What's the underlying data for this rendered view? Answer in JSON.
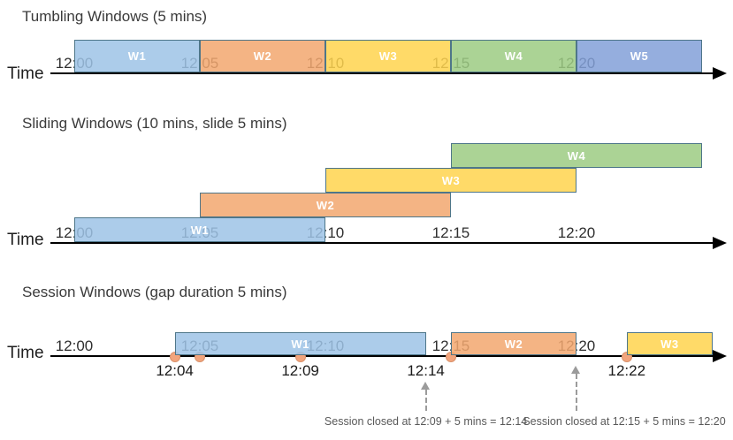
{
  "page": {
    "background": "#ffffff"
  },
  "colors": {
    "window_blue": "#9DC3E6",
    "window_orange": "#F2A76F",
    "window_yellow": "#FFD34D",
    "window_green": "#9CCB83",
    "window_blue_dark": "#82A0D8",
    "window_border": "#4E7689",
    "window_label_text": "#FFFFFF",
    "axis_color": "#000000",
    "tick_text": "#2F2F2F",
    "event_dot_fill": "#F2A47C",
    "event_dot_border": "#D9916A",
    "callout_gray": "#9B9B9B",
    "callout_text_color": "#595959",
    "title_text": "#3A3A3A"
  },
  "sections": [
    {
      "id": "tumbling",
      "title": "Tumbling Windows (5 mins)",
      "time_axis_label": "Time",
      "ticks": [
        {
          "label": "12:00",
          "minute": 0
        },
        {
          "label": "12:05",
          "minute": 5
        },
        {
          "label": "12:10",
          "minute": 10
        },
        {
          "label": "12:15",
          "minute": 15
        },
        {
          "label": "12:20",
          "minute": 20
        }
      ],
      "windows": [
        {
          "name": "W1",
          "start_minute": 0,
          "end_minute": 5,
          "color": "window_blue",
          "row": 0
        },
        {
          "name": "W2",
          "start_minute": 5,
          "end_minute": 10,
          "color": "window_orange",
          "row": 0
        },
        {
          "name": "W3",
          "start_minute": 10,
          "end_minute": 15,
          "color": "window_yellow",
          "row": 0
        },
        {
          "name": "W4",
          "start_minute": 15,
          "end_minute": 20,
          "color": "window_green",
          "row": 0
        },
        {
          "name": "W5",
          "start_minute": 20,
          "end_minute": 25,
          "color": "window_blue_dark",
          "row": 0
        }
      ],
      "events": [],
      "event_labels": [],
      "callouts": []
    },
    {
      "id": "sliding",
      "title": "Sliding Windows (10 mins, slide 5 mins)",
      "time_axis_label": "Time",
      "ticks": [
        {
          "label": "12:00",
          "minute": 0
        },
        {
          "label": "12:05",
          "minute": 5
        },
        {
          "label": "12:10",
          "minute": 10
        },
        {
          "label": "12:15",
          "minute": 15
        },
        {
          "label": "12:20",
          "minute": 20
        }
      ],
      "windows": [
        {
          "name": "W1",
          "start_minute": 0,
          "end_minute": 10,
          "color": "window_blue",
          "row": 0
        },
        {
          "name": "W2",
          "start_minute": 5,
          "end_minute": 15,
          "color": "window_orange",
          "row": 1
        },
        {
          "name": "W3",
          "start_minute": 10,
          "end_minute": 20,
          "color": "window_yellow",
          "row": 2
        },
        {
          "name": "W4",
          "start_minute": 15,
          "end_minute": 25,
          "color": "window_green",
          "row": 3
        }
      ],
      "events": [],
      "event_labels": [],
      "callouts": []
    },
    {
      "id": "session",
      "title": "Session Windows (gap duration 5 mins)",
      "time_axis_label": "Time",
      "ticks": [
        {
          "label": "12:00",
          "minute": 0
        },
        {
          "label": "12:05",
          "minute": 5
        },
        {
          "label": "12:10",
          "minute": 10
        },
        {
          "label": "12:15",
          "minute": 15
        },
        {
          "label": "12:20",
          "minute": 20
        }
      ],
      "windows": [
        {
          "name": "W1",
          "start_minute": 4,
          "end_minute": 14,
          "color": "window_blue",
          "row": 0
        },
        {
          "name": "W2",
          "start_minute": 15,
          "end_minute": 20,
          "color": "window_orange",
          "row": 0
        },
        {
          "name": "W3",
          "start_minute": 22,
          "end_minute": 26,
          "color": "window_yellow",
          "row": 0
        }
      ],
      "events": [
        {
          "minute": 4
        },
        {
          "minute": 5
        },
        {
          "minute": 9
        },
        {
          "minute": 15
        },
        {
          "minute": 22
        }
      ],
      "event_labels": [
        {
          "label": "12:04",
          "minute": 4
        },
        {
          "label": "12:09",
          "minute": 9
        },
        {
          "label": "12:14",
          "minute": 14
        },
        {
          "label": "12:22",
          "minute": 22
        }
      ],
      "callouts": [
        {
          "text": "Session closed at 12:09 + 5 mins = 12:14",
          "arrow_minute": 14
        },
        {
          "text": "Session closed at 12:15 + 5 mins = 12:20",
          "arrow_minute": 20
        }
      ]
    }
  ]
}
